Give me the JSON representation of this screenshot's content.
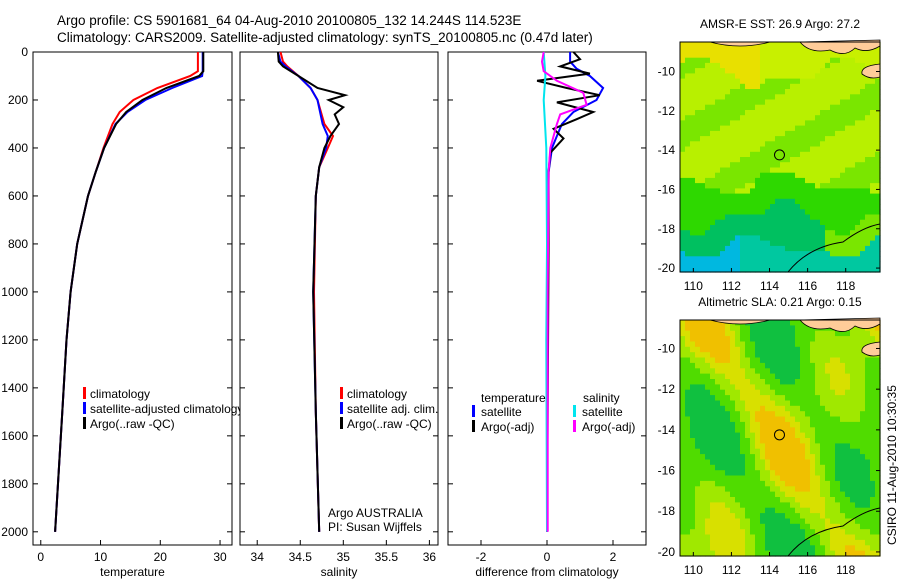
{
  "figure": {
    "title_line1": "Argo profile: CS 5901681_64 04-Aug-2010 20100805_132 14.244S 114.523E",
    "title_line2": "Climatology: CARS2009. Satellite-adjusted climatology: synTS_20100805.nc (0.47d later)",
    "side_label": "CSIRO 11-Aug-2010 10:30:35",
    "credit_line1": "Argo AUSTRALIA",
    "credit_line2": "PI: Susan Wijffels"
  },
  "colors": {
    "red": "#ff0000",
    "blue": "#0000ff",
    "black": "#000000",
    "cyan": "#00e5ee",
    "magenta": "#ff00ff",
    "land": "#ffcc99"
  },
  "chart_data": [
    {
      "type": "line",
      "xlabel": "temperature",
      "ylabel": "",
      "xlim": [
        -1.3,
        32
      ],
      "ylim": [
        2055,
        0
      ],
      "xticks": [
        0,
        10,
        20,
        30
      ],
      "yticks": [
        0,
        200,
        400,
        600,
        800,
        1000,
        1200,
        1400,
        1600,
        1800,
        2000
      ],
      "legend": [
        "climatology",
        "satellite-adjusted climatology",
        "Argo(..raw -QC)"
      ],
      "series": [
        {
          "name": "climatology",
          "color": "red",
          "depth": [
            0,
            80,
            100,
            150,
            200,
            250,
            300,
            400,
            500,
            600,
            800,
            1000,
            1200,
            1500,
            2000
          ],
          "values": [
            26.3,
            26.3,
            25,
            19.5,
            15.5,
            13.2,
            12,
            10.5,
            9.2,
            7.9,
            6.1,
            5,
            4.3,
            3.6,
            2.4
          ]
        },
        {
          "name": "satellite-adjusted climatology",
          "color": "blue",
          "depth": [
            0,
            80,
            100,
            150,
            200,
            250,
            300,
            400,
            500,
            600,
            800,
            1000,
            1200,
            1500,
            2000
          ],
          "values": [
            27.1,
            27.1,
            27,
            22,
            17.5,
            14.5,
            12.5,
            10.6,
            9.2,
            7.9,
            6.1,
            5,
            4.3,
            3.6,
            2.4
          ]
        },
        {
          "name": "Argo(..raw -QC)",
          "color": "black",
          "depth": [
            0,
            80,
            100,
            150,
            200,
            250,
            300,
            400,
            500,
            600,
            800,
            1000,
            1200,
            1500,
            2000
          ],
          "values": [
            27.2,
            27.2,
            26.5,
            21,
            17,
            14.3,
            12.6,
            10.6,
            9.2,
            7.9,
            6.1,
            5,
            4.3,
            3.6,
            2.4
          ]
        }
      ]
    },
    {
      "type": "line",
      "xlabel": "salinity",
      "xlim": [
        33.8,
        36.1
      ],
      "ylim": [
        2055,
        0
      ],
      "xticks": [
        34,
        34.5,
        35,
        35.5,
        36
      ],
      "legend": [
        "climatology",
        "satellite adj. clim.",
        "Argo(..raw -QC)"
      ],
      "series": [
        {
          "name": "climatology",
          "color": "red",
          "depth": [
            0,
            40,
            60,
            100,
            150,
            200,
            300,
            350,
            400,
            480,
            600,
            1000,
            1500,
            2000
          ],
          "values": [
            34.27,
            34.3,
            34.35,
            34.48,
            34.62,
            34.7,
            34.78,
            34.88,
            34.82,
            34.72,
            34.68,
            34.66,
            34.68,
            34.72
          ]
        },
        {
          "name": "satellite adj. clim.",
          "color": "blue",
          "depth": [
            0,
            40,
            60,
            100,
            150,
            200,
            300,
            350,
            400,
            480,
            600,
            1000,
            1500,
            2000
          ],
          "values": [
            34.24,
            34.27,
            34.33,
            34.48,
            34.62,
            34.7,
            34.76,
            34.82,
            34.8,
            34.72,
            34.68,
            34.65,
            34.68,
            34.72
          ]
        },
        {
          "name": "Argo(..raw -QC)",
          "color": "black",
          "depth": [
            0,
            40,
            60,
            100,
            150,
            180,
            200,
            230,
            260,
            300,
            350,
            400,
            480,
            600,
            1000,
            1500,
            2000
          ],
          "values": [
            34.24,
            34.25,
            34.3,
            34.48,
            34.7,
            35.02,
            34.83,
            35.0,
            34.9,
            34.95,
            34.85,
            34.78,
            34.72,
            34.68,
            34.65,
            34.68,
            34.72
          ]
        }
      ]
    },
    {
      "type": "line",
      "xlabel": "difference from climatology",
      "xlim": [
        -3,
        3
      ],
      "ylim": [
        2055,
        0
      ],
      "xticks": [
        -2,
        0,
        2
      ],
      "legend_temperature_heading": "temperature",
      "legend_salinity_heading": "salinity",
      "legend": [
        "satellite",
        "Argo(-adj)",
        "satellite",
        "Argo(-adj)"
      ],
      "series": [
        {
          "name": "temperature satellite",
          "color": "blue",
          "depth": [
            0,
            40,
            70,
            100,
            150,
            200,
            250,
            300,
            350,
            400,
            500,
            800,
            2000
          ],
          "values": [
            0.7,
            0.7,
            0.9,
            1.3,
            1.7,
            1.5,
            0.8,
            0.45,
            0.3,
            0.15,
            0.05,
            0.02,
            0.0
          ]
        },
        {
          "name": "temperature Argo(-adj)",
          "color": "black",
          "depth": [
            0,
            30,
            60,
            90,
            120,
            150,
            180,
            210,
            250,
            280,
            320,
            360,
            420,
            500,
            800,
            2000
          ],
          "values": [
            0.8,
            1.0,
            0.4,
            1.3,
            -0.3,
            0.6,
            1.6,
            0.3,
            1.4,
            0.9,
            0.2,
            0.5,
            0.1,
            0.05,
            0.05,
            0.0
          ]
        },
        {
          "name": "salinity satellite",
          "color": "cyan",
          "depth": [
            0,
            100,
            200,
            400,
            800,
            1200,
            2000
          ],
          "values": [
            -0.1,
            -0.05,
            -0.1,
            -0.02,
            0.0,
            -0.02,
            0.0
          ]
        },
        {
          "name": "salinity Argo(-adj)",
          "color": "magenta",
          "depth": [
            0,
            40,
            80,
            120,
            170,
            220,
            260,
            300,
            400,
            500,
            1000,
            2000
          ],
          "values": [
            -0.1,
            -0.15,
            -0.1,
            0.3,
            1.1,
            1.2,
            0.4,
            0.3,
            0.1,
            0.05,
            0.02,
            0.02
          ]
        }
      ]
    },
    {
      "type": "heatmap",
      "title": "AMSR-E SST: 26.9 Argo: 27.2",
      "xlim": [
        109.3,
        119.8
      ],
      "ylim": [
        -20.2,
        -8.5
      ],
      "xticks": [
        110,
        112,
        114,
        116,
        118
      ],
      "yticks": [
        -10,
        -12,
        -14,
        -16,
        -18,
        -20
      ],
      "marker": {
        "lon": 114.523,
        "lat": -14.244
      }
    },
    {
      "type": "heatmap",
      "title": "Altimetric SLA: 0.21 Argo: 0.15",
      "xlim": [
        109.3,
        119.8
      ],
      "ylim": [
        -20.2,
        -8.6
      ],
      "xticks": [
        110,
        112,
        114,
        116,
        118
      ],
      "yticks": [
        -10,
        -12,
        -14,
        -16,
        -18,
        -20
      ],
      "marker": {
        "lon": 114.523,
        "lat": -14.244
      }
    }
  ]
}
